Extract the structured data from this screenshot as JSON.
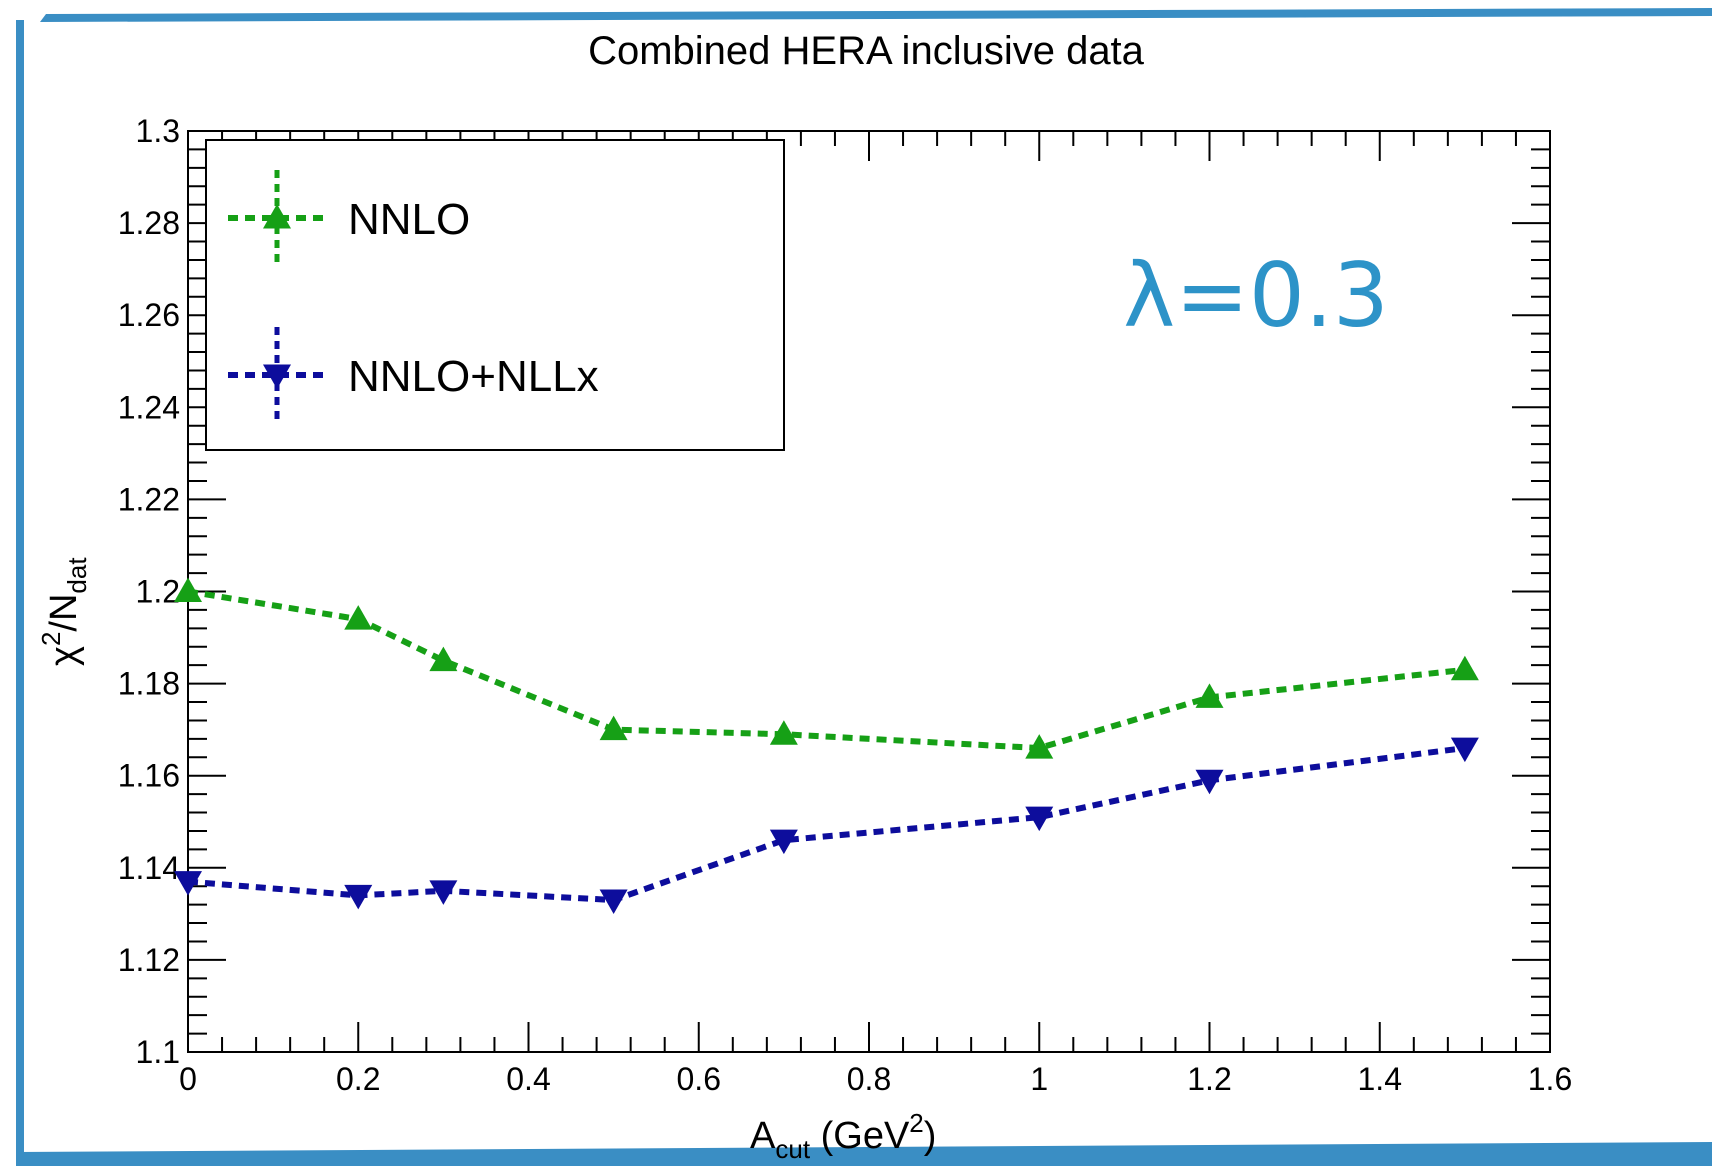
{
  "colors": {
    "frame_blue": "#3a8ec4",
    "nnlo_green": "#16a016",
    "nllx_blue": "#0d0d9c",
    "annotation_blue": "#2d93c8"
  },
  "chart_data": {
    "type": "line",
    "title": "Combined HERA inclusive data",
    "xlabel": {
      "base": "A",
      "sub": "cut",
      "rest": " (GeV",
      "sup": "2",
      "close": ")"
    },
    "ylabel": {
      "base": "χ",
      "sup": "2",
      "mid": "/N",
      "sub": "dat"
    },
    "xlim": [
      0,
      1.6
    ],
    "ylim": [
      1.1,
      1.3
    ],
    "x_ticks": [
      "0",
      "0.2",
      "0.4",
      "0.6",
      "0.8",
      "1",
      "1.2",
      "1.4",
      "1.6"
    ],
    "y_ticks": [
      "1.1",
      "1.12",
      "1.14",
      "1.16",
      "1.18",
      "1.2",
      "1.22",
      "1.24",
      "1.26",
      "1.28",
      "1.3"
    ],
    "legend": "top-left",
    "annotation": "λ=0.3",
    "series": [
      {
        "name": "NNLO",
        "marker": "triangle-up",
        "x": [
          0,
          0.2,
          0.3,
          0.5,
          0.7,
          1.0,
          1.2,
          1.5
        ],
        "y": [
          1.2,
          1.194,
          1.185,
          1.17,
          1.169,
          1.166,
          1.177,
          1.183
        ]
      },
      {
        "name": "NNLO+NLLx",
        "marker": "triangle-down",
        "x": [
          0,
          0.2,
          0.3,
          0.5,
          0.7,
          1.0,
          1.2,
          1.5
        ],
        "y": [
          1.137,
          1.134,
          1.135,
          1.133,
          1.146,
          1.151,
          1.159,
          1.166
        ]
      }
    ]
  }
}
